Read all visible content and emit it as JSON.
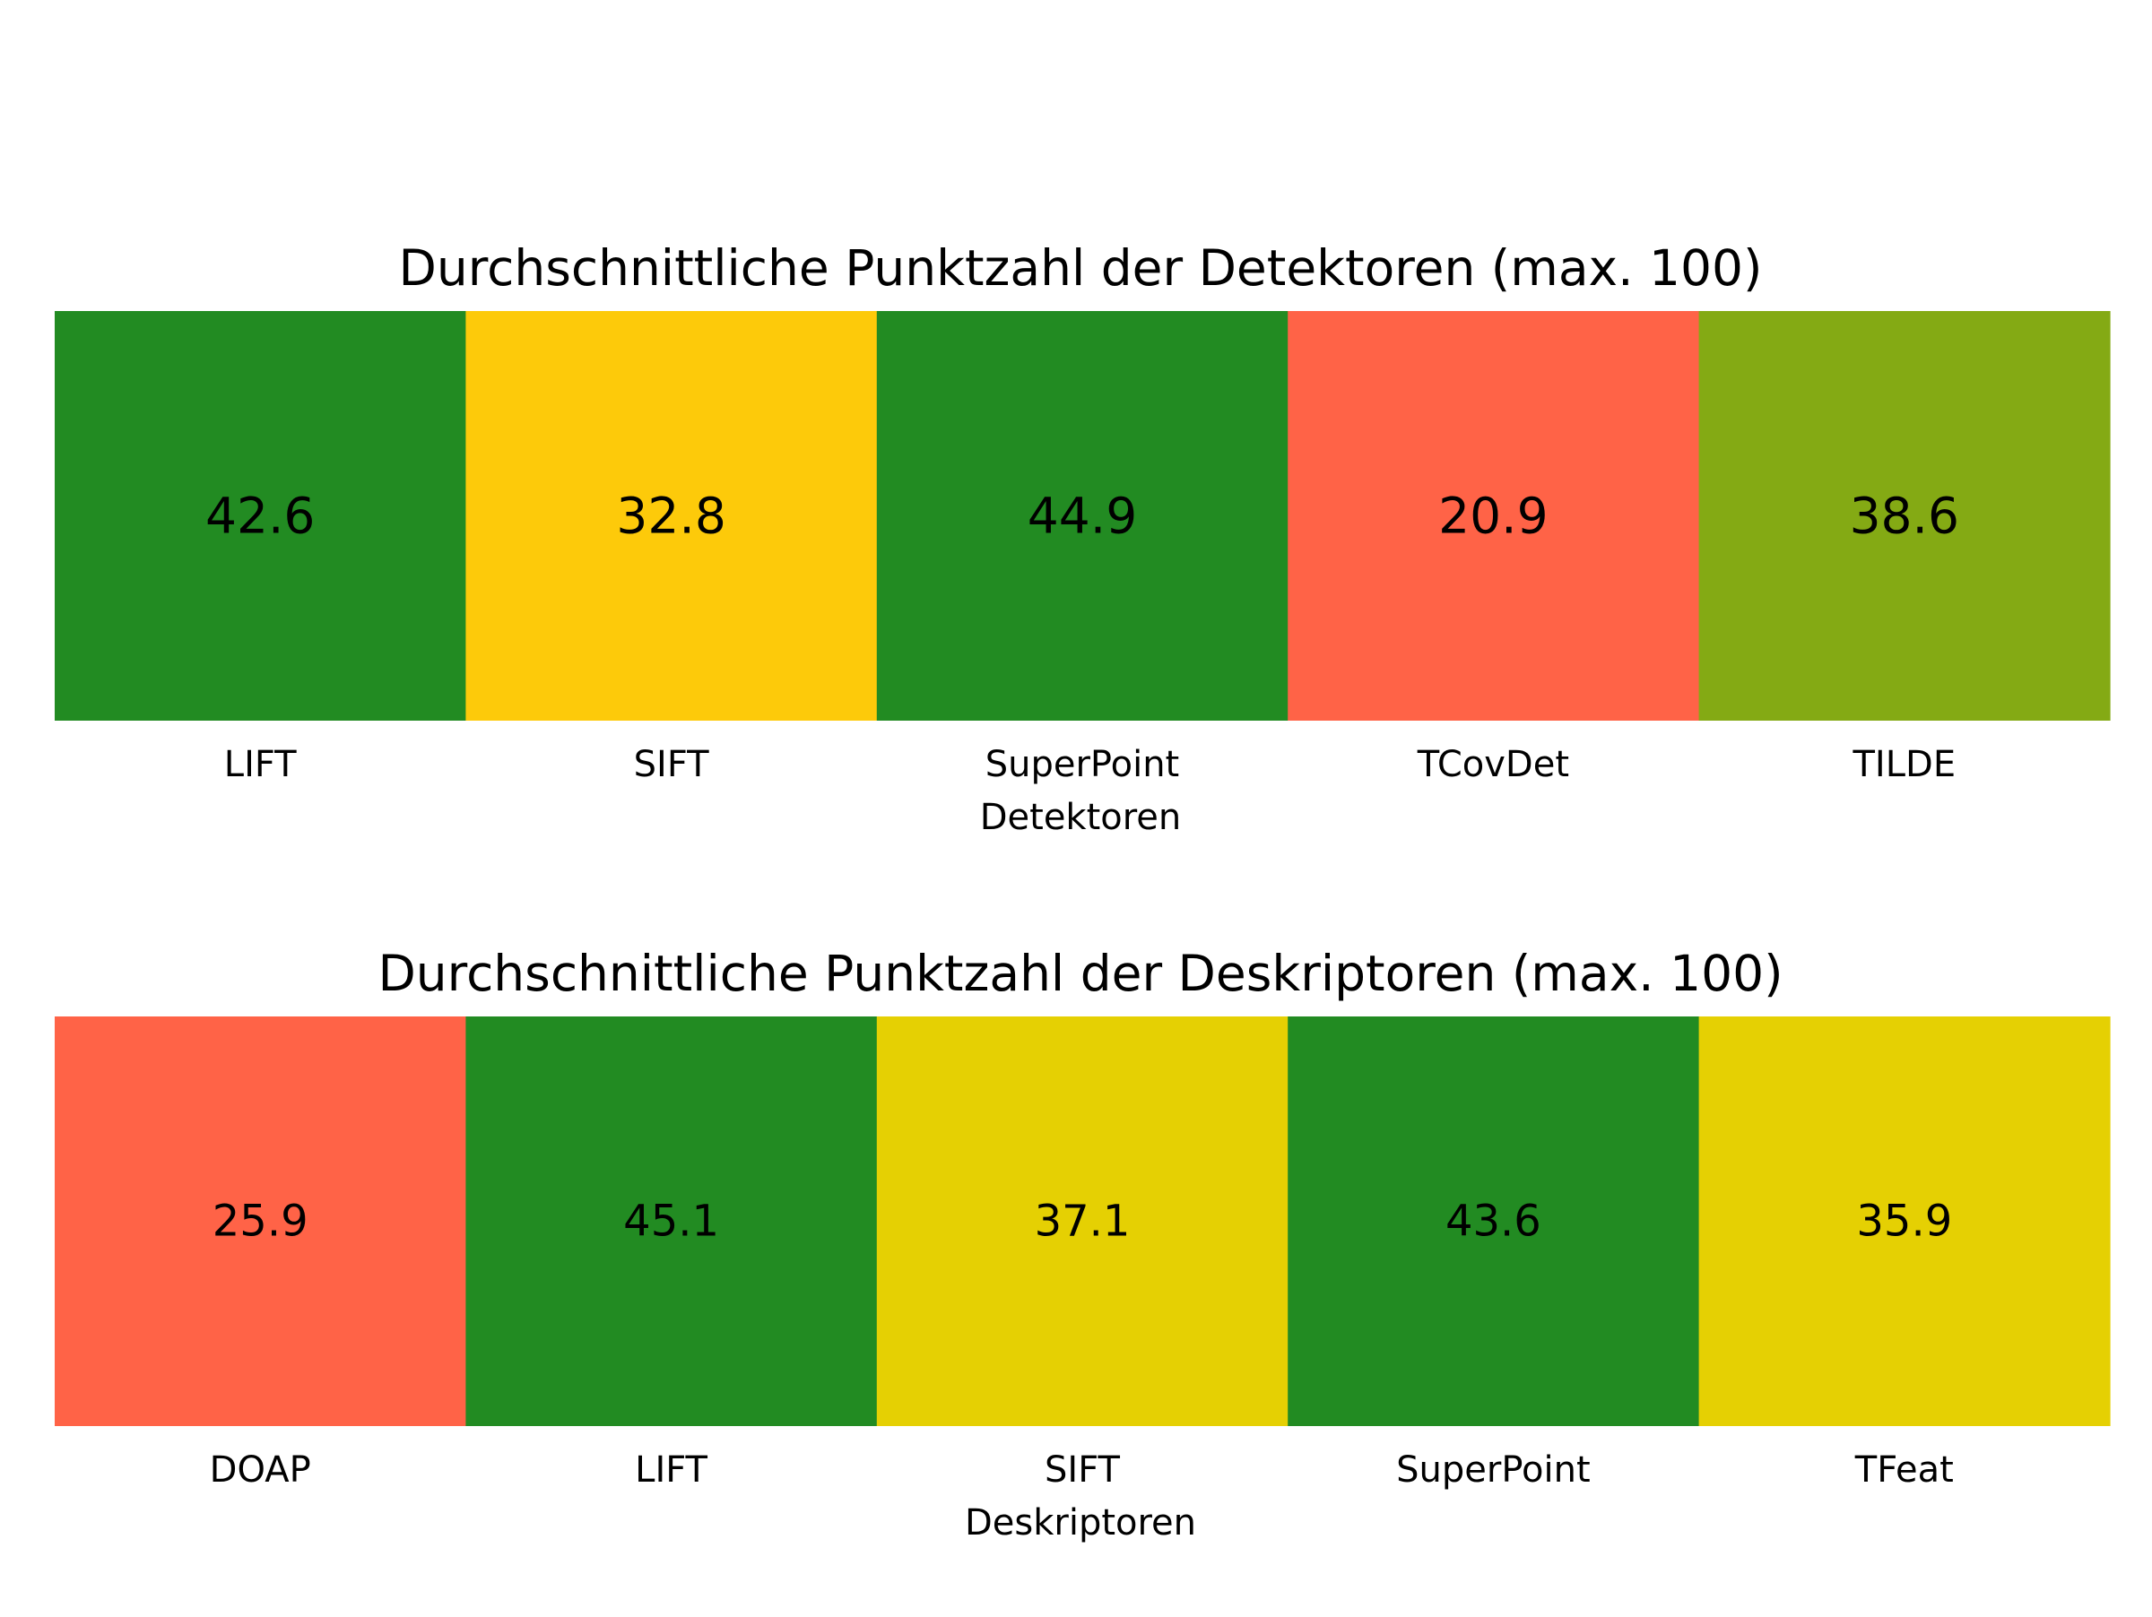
{
  "chart_data": [
    {
      "type": "heatmap",
      "title": "Durchschnittliche Punktzahl der Detektoren (max. 100)",
      "xlabel": "Detektoren",
      "ylabel": "",
      "categories": [
        "LIFT",
        "SIFT",
        "SuperPoint",
        "TCovDet",
        "TILDE"
      ],
      "values": [
        42.6,
        32.8,
        44.9,
        20.9,
        38.6
      ],
      "value_labels": [
        "42.6",
        "32.8",
        "44.9",
        "20.9",
        "38.6"
      ],
      "cell_colors": [
        "#228B22",
        "#FDCA0A",
        "#228B22",
        "#FF6347",
        "#84AA14"
      ],
      "grid": false,
      "legend": "none"
    },
    {
      "type": "heatmap",
      "title": "Durchschnittliche Punktzahl der Deskriptoren (max. 100)",
      "xlabel": "Deskriptoren",
      "ylabel": "",
      "categories": [
        "DOAP",
        "LIFT",
        "SIFT",
        "SuperPoint",
        "TFeat"
      ],
      "values": [
        25.9,
        45.1,
        37.1,
        43.6,
        35.9
      ],
      "value_labels": [
        "25.9",
        "45.1",
        "37.1",
        "43.6",
        "35.9"
      ],
      "cell_colors": [
        "#FF6347",
        "#228B22",
        "#E5D003",
        "#228B22",
        "#E5D003"
      ],
      "grid": false,
      "legend": "none"
    }
  ]
}
